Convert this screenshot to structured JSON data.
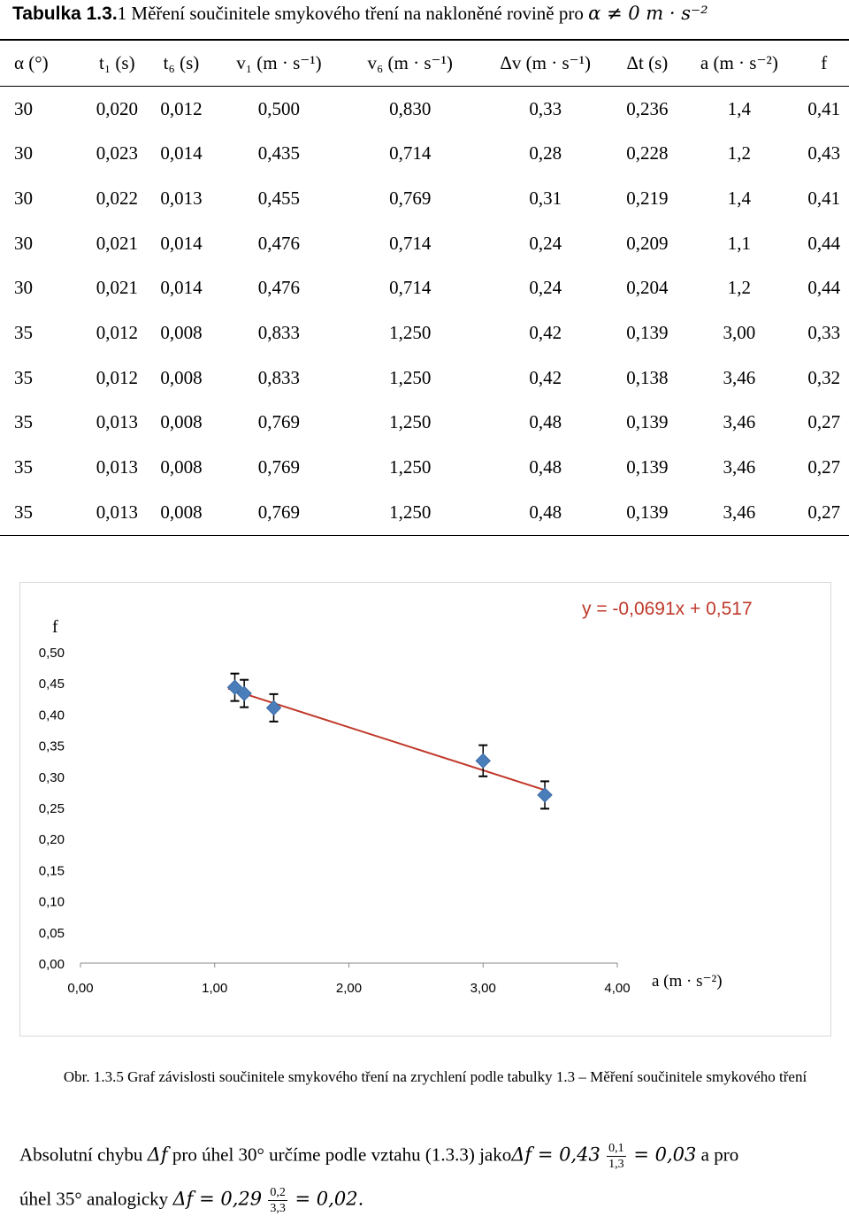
{
  "table_caption": {
    "lead": "Tabulka 1.3.",
    "text": "1 Měření součinitele smykového tření na nakloněné rovině pro",
    "condition": "α ≠ 0 m · s⁻²"
  },
  "table": {
    "headers": [
      "α (°)",
      "t₁ (s)",
      "t₆ (s)",
      "v₁ (m · s⁻¹)",
      "v₆ (m · s⁻¹)",
      "Δv (m · s⁻¹)",
      "Δt (s)",
      "a (m · s⁻²)",
      "f"
    ],
    "rows": [
      [
        "30",
        "0,020",
        "0,012",
        "0,500",
        "0,830",
        "0,33",
        "0,236",
        "1,4",
        "0,41"
      ],
      [
        "30",
        "0,023",
        "0,014",
        "0,435",
        "0,714",
        "0,28",
        "0,228",
        "1,2",
        "0,43"
      ],
      [
        "30",
        "0,022",
        "0,013",
        "0,455",
        "0,769",
        "0,31",
        "0,219",
        "1,4",
        "0,41"
      ],
      [
        "30",
        "0,021",
        "0,014",
        "0,476",
        "0,714",
        "0,24",
        "0,209",
        "1,1",
        "0,44"
      ],
      [
        "30",
        "0,021",
        "0,014",
        "0,476",
        "0,714",
        "0,24",
        "0,204",
        "1,2",
        "0,44"
      ],
      [
        "35",
        "0,012",
        "0,008",
        "0,833",
        "1,250",
        "0,42",
        "0,139",
        "3,00",
        "0,33"
      ],
      [
        "35",
        "0,012",
        "0,008",
        "0,833",
        "1,250",
        "0,42",
        "0,138",
        "3,46",
        "0,32"
      ],
      [
        "35",
        "0,013",
        "0,008",
        "0,769",
        "1,250",
        "0,48",
        "0,139",
        "3,46",
        "0,27"
      ],
      [
        "35",
        "0,013",
        "0,008",
        "0,769",
        "1,250",
        "0,48",
        "0,139",
        "3,46",
        "0,27"
      ],
      [
        "35",
        "0,013",
        "0,008",
        "0,769",
        "1,250",
        "0,48",
        "0,139",
        "3,46",
        "0,27"
      ]
    ]
  },
  "chart_data": {
    "type": "scatter",
    "ylabel": "f",
    "xlabel": "a (m · s⁻²)",
    "xlim": [
      0,
      4
    ],
    "ylim": [
      0,
      0.5
    ],
    "x_ticks": [
      "0,00",
      "1,00",
      "2,00",
      "3,00",
      "4,00"
    ],
    "y_ticks": [
      "0,00",
      "0,05",
      "0,10",
      "0,15",
      "0,20",
      "0,25",
      "0,30",
      "0,35",
      "0,40",
      "0,45",
      "0,50"
    ],
    "points": [
      {
        "x": 1.15,
        "y": 0.443,
        "err": 0.022
      },
      {
        "x": 1.22,
        "y": 0.433,
        "err": 0.022
      },
      {
        "x": 1.44,
        "y": 0.41,
        "err": 0.022
      },
      {
        "x": 3.0,
        "y": 0.325,
        "err": 0.025
      },
      {
        "x": 3.46,
        "y": 0.27,
        "err": 0.022
      }
    ],
    "trendline": {
      "equation": "y = -0,0691x + 0,517",
      "slope": -0.0691,
      "intercept": 0.517,
      "x_range": [
        1.1,
        3.46
      ],
      "color": "#c0392b"
    },
    "marker_color": "#4a7ebb",
    "grid": false,
    "legend": "none"
  },
  "figure_caption": "Obr. 1.3.5 Graf závislosti součinitele smykového tření na zrychlení podle tabulky 1.3 – Měření součinitele smykového tření",
  "paragraph": {
    "line1_a": "Absolutní chybu ",
    "delta_f": "Δf",
    "line1_b": " pro úhel 30° určíme podle vztahu (1.3.3) jako",
    "line1_expr": " = 0,43",
    "frac1_num": "0,1",
    "frac1_den": "1,3",
    "line1_result": " = 0,03",
    "line1_tail": " a pro",
    "line2_a": "úhel 35° analogicky ",
    "line2_expr": " = 0,29",
    "frac2_num": "0,2",
    "frac2_den": "3,3",
    "line2_result": " = 0,02."
  }
}
